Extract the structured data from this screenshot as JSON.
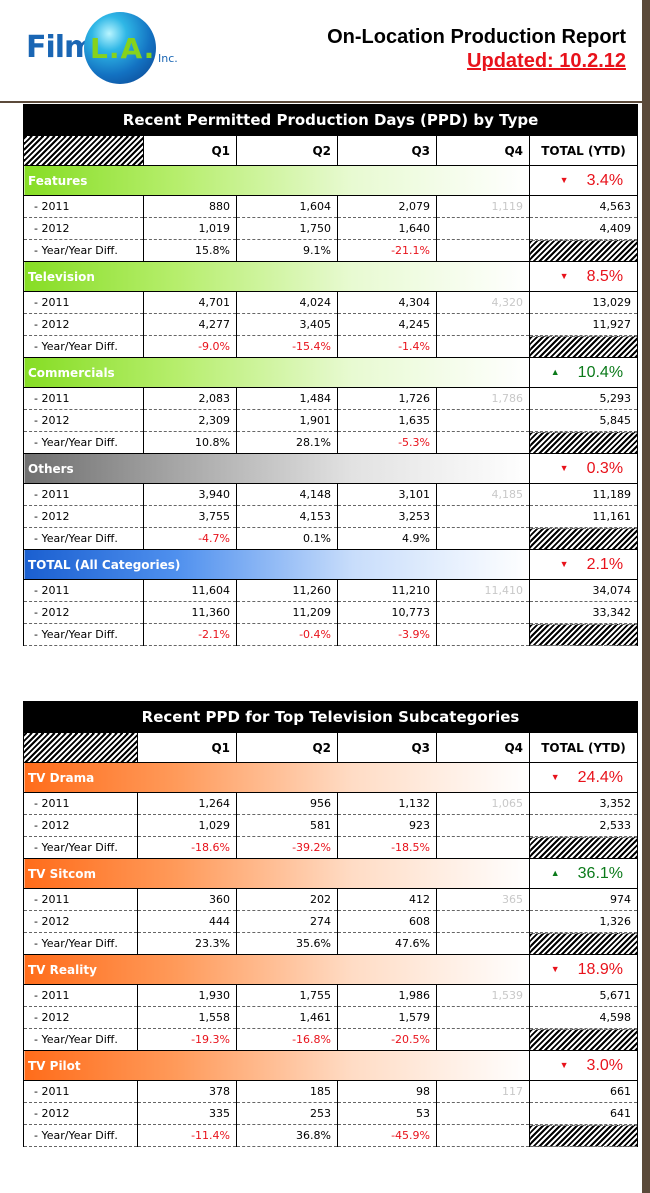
{
  "header": {
    "logo_film": "Film",
    "logo_la": "L.A.",
    "logo_inc": "Inc.",
    "title": "On-Location Production Report",
    "updated": "Updated: 10.2.12"
  },
  "colors": {
    "negative": "#e8121b",
    "positive": "#0b7a1a",
    "type_green": "#86dd24",
    "type_gray": "#6f6f6f",
    "type_blue": "#1a5fd0",
    "sub_orange": "#ff6c1a"
  },
  "tables": [
    {
      "caption": "Recent Permitted Production Days (PPD) by Type",
      "columns": [
        "Q1",
        "Q2",
        "Q3",
        "Q4",
        "TOTAL (YTD)"
      ],
      "groups": [
        {
          "name": "Features",
          "change": "3.4%",
          "direction": "down",
          "color": "green",
          "rows": [
            {
              "label": "- 2011",
              "q1": "880",
              "q2": "1,604",
              "q3": "2,079",
              "q4": "1,119",
              "total": "4,563"
            },
            {
              "label": "- 2012",
              "q1": "1,019",
              "q2": "1,750",
              "q3": "1,640",
              "q4": "",
              "total": "4,409"
            },
            {
              "label": "- Year/Year Diff.",
              "q1": "15.8%",
              "q2": "9.1%",
              "q3": "-21.1%",
              "q4": "",
              "total": ""
            }
          ]
        },
        {
          "name": "Television",
          "change": "8.5%",
          "direction": "down",
          "color": "green",
          "rows": [
            {
              "label": "- 2011",
              "q1": "4,701",
              "q2": "4,024",
              "q3": "4,304",
              "q4": "4,320",
              "total": "13,029"
            },
            {
              "label": "- 2012",
              "q1": "4,277",
              "q2": "3,405",
              "q3": "4,245",
              "q4": "",
              "total": "11,927"
            },
            {
              "label": "- Year/Year Diff.",
              "q1": "-9.0%",
              "q2": "-15.4%",
              "q3": "-1.4%",
              "q4": "",
              "total": ""
            }
          ]
        },
        {
          "name": "Commercials",
          "change": "10.4%",
          "direction": "up",
          "color": "green",
          "rows": [
            {
              "label": "- 2011",
              "q1": "2,083",
              "q2": "1,484",
              "q3": "1,726",
              "q4": "1,786",
              "total": "5,293"
            },
            {
              "label": "- 2012",
              "q1": "2,309",
              "q2": "1,901",
              "q3": "1,635",
              "q4": "",
              "total": "5,845"
            },
            {
              "label": "- Year/Year Diff.",
              "q1": "10.8%",
              "q2": "28.1%",
              "q3": "-5.3%",
              "q4": "",
              "total": ""
            }
          ]
        },
        {
          "name": "Others",
          "change": "0.3%",
          "direction": "down",
          "color": "gray",
          "rows": [
            {
              "label": "- 2011",
              "q1": "3,940",
              "q2": "4,148",
              "q3": "3,101",
              "q4": "4,185",
              "total": "11,189"
            },
            {
              "label": "- 2012",
              "q1": "3,755",
              "q2": "4,153",
              "q3": "3,253",
              "q4": "",
              "total": "11,161"
            },
            {
              "label": "- Year/Year Diff.",
              "q1": "-4.7%",
              "q2": "0.1%",
              "q3": "4.9%",
              "q4": "",
              "total": ""
            }
          ]
        },
        {
          "name": "TOTAL (All Categories)",
          "change": "2.1%",
          "direction": "down",
          "color": "blue",
          "rows": [
            {
              "label": "- 2011",
              "q1": "11,604",
              "q2": "11,260",
              "q3": "11,210",
              "q4": "11,410",
              "total": "34,074"
            },
            {
              "label": "- 2012",
              "q1": "11,360",
              "q2": "11,209",
              "q3": "10,773",
              "q4": "",
              "total": "33,342"
            },
            {
              "label": "- Year/Year Diff.",
              "q1": "-2.1%",
              "q2": "-0.4%",
              "q3": "-3.9%",
              "q4": "",
              "total": ""
            }
          ]
        }
      ]
    },
    {
      "caption": "Recent PPD for Top Television Subcategories",
      "columns": [
        "Q1",
        "Q2",
        "Q3",
        "Q4",
        "TOTAL (YTD)"
      ],
      "groups": [
        {
          "name": "TV Drama",
          "change": "24.4%",
          "direction": "down",
          "color": "orange",
          "rows": [
            {
              "label": "- 2011",
              "q1": "1,264",
              "q2": "956",
              "q3": "1,132",
              "q4": "1,065",
              "total": "3,352"
            },
            {
              "label": "- 2012",
              "q1": "1,029",
              "q2": "581",
              "q3": "923",
              "q4": "",
              "total": "2,533"
            },
            {
              "label": "- Year/Year Diff.",
              "q1": "-18.6%",
              "q2": "-39.2%",
              "q3": "-18.5%",
              "q4": "",
              "total": ""
            }
          ]
        },
        {
          "name": "TV Sitcom",
          "change": "36.1%",
          "direction": "up",
          "color": "orange",
          "rows": [
            {
              "label": "- 2011",
              "q1": "360",
              "q2": "202",
              "q3": "412",
              "q4": "365",
              "total": "974"
            },
            {
              "label": "- 2012",
              "q1": "444",
              "q2": "274",
              "q3": "608",
              "q4": "",
              "total": "1,326"
            },
            {
              "label": "- Year/Year Diff.",
              "q1": "23.3%",
              "q2": "35.6%",
              "q3": "47.6%",
              "q4": "",
              "total": ""
            }
          ]
        },
        {
          "name": "TV Reality",
          "change": "18.9%",
          "direction": "down",
          "color": "orange",
          "rows": [
            {
              "label": "- 2011",
              "q1": "1,930",
              "q2": "1,755",
              "q3": "1,986",
              "q4": "1,539",
              "total": "5,671"
            },
            {
              "label": "- 2012",
              "q1": "1,558",
              "q2": "1,461",
              "q3": "1,579",
              "q4": "",
              "total": "4,598"
            },
            {
              "label": "- Year/Year Diff.",
              "q1": "-19.3%",
              "q2": "-16.8%",
              "q3": "-20.5%",
              "q4": "",
              "total": ""
            }
          ]
        },
        {
          "name": "TV Pilot",
          "change": "3.0%",
          "direction": "down",
          "color": "orange",
          "rows": [
            {
              "label": "- 2011",
              "q1": "378",
              "q2": "185",
              "q3": "98",
              "q4": "117",
              "total": "661"
            },
            {
              "label": "- 2012",
              "q1": "335",
              "q2": "253",
              "q3": "53",
              "q4": "",
              "total": "641"
            },
            {
              "label": "- Year/Year Diff.",
              "q1": "-11.4%",
              "q2": "36.8%",
              "q3": "-45.9%",
              "q4": "",
              "total": ""
            }
          ]
        }
      ]
    }
  ]
}
